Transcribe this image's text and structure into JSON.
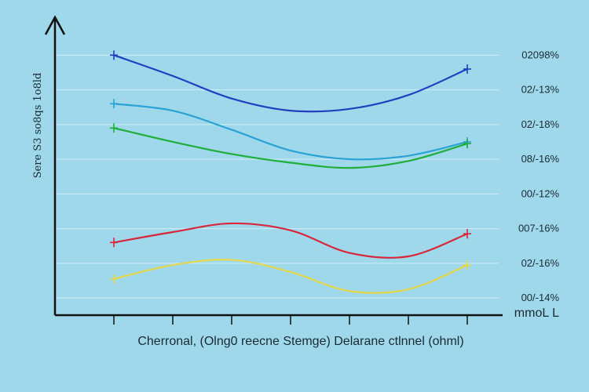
{
  "chart_data": {
    "type": "line",
    "title": "",
    "xlabel": "Cherronal, (Olng0 reecne Stemge) Delarane ctlnnel (ohml)",
    "ylabel": "Sere S3 so8qs 1o8ld",
    "unit_label": "mmoL L",
    "x": [
      1,
      2,
      3,
      4,
      5,
      6,
      7
    ],
    "xlim": [
      0,
      7.6
    ],
    "ylim": [
      0,
      8
    ],
    "y_tick_labels": [
      "02098%",
      "02/-13%",
      "02/-18%",
      "08/-16%",
      "00/-12%",
      "007-16%",
      "02/-16%",
      "00/-14%"
    ],
    "grid": true,
    "series": [
      {
        "name": "dark-blue",
        "color": "#1f3fbf",
        "x": [
          1,
          2,
          3,
          4,
          5,
          6,
          7
        ],
        "values": [
          7.45,
          6.85,
          6.2,
          5.85,
          5.9,
          6.3,
          7.05
        ]
      },
      {
        "name": "light-blue",
        "color": "#2aa2d6",
        "x": [
          1,
          2,
          3,
          4,
          5,
          6,
          7
        ],
        "values": [
          6.05,
          5.85,
          5.3,
          4.7,
          4.45,
          4.55,
          4.95
        ]
      },
      {
        "name": "green",
        "color": "#1fae3a",
        "x": [
          1,
          2,
          3,
          4,
          5,
          6,
          7
        ],
        "values": [
          5.35,
          4.95,
          4.6,
          4.35,
          4.2,
          4.4,
          4.9
        ]
      },
      {
        "name": "red",
        "color": "#d8263a",
        "x": [
          1,
          2,
          3,
          4,
          5,
          6,
          7
        ],
        "values": [
          2.05,
          2.35,
          2.6,
          2.4,
          1.75,
          1.65,
          2.3
        ]
      },
      {
        "name": "yellow",
        "color": "#e6d84a",
        "x": [
          1,
          2,
          3,
          4,
          5,
          6,
          7
        ],
        "values": [
          1.0,
          1.4,
          1.55,
          1.2,
          0.65,
          0.7,
          1.4
        ]
      }
    ]
  }
}
